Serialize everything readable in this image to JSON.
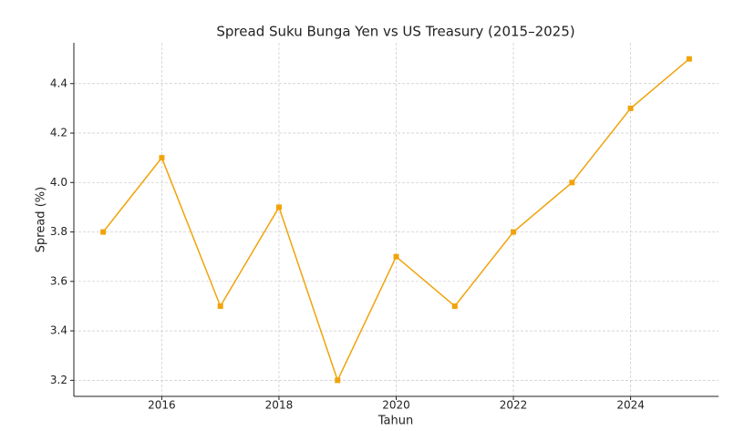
{
  "chart_data": {
    "type": "line",
    "title": "Spread Suku Bunga Yen vs US Treasury (2015–2025)",
    "x_label": "Tahun",
    "y_label": "Spread (%)",
    "x": [
      2015,
      2016,
      2017,
      2018,
      2019,
      2020,
      2021,
      2022,
      2023,
      2024,
      2025
    ],
    "values": [
      3.8,
      4.1,
      3.5,
      3.9,
      3.2,
      3.7,
      3.5,
      3.8,
      4.0,
      4.3,
      4.5
    ],
    "color": "#f0a30a",
    "marker": "square",
    "xlim": [
      2014.5,
      2025.5
    ],
    "xticks": [
      2016,
      2018,
      2020,
      2022,
      2024
    ],
    "ylim": [
      3.135,
      4.565
    ],
    "yticks": [
      3.2,
      3.4,
      3.6,
      3.8,
      {
        "value": 4.0,
        "label": "4.0"
      },
      4.2,
      4.4
    ],
    "grid": true
  }
}
